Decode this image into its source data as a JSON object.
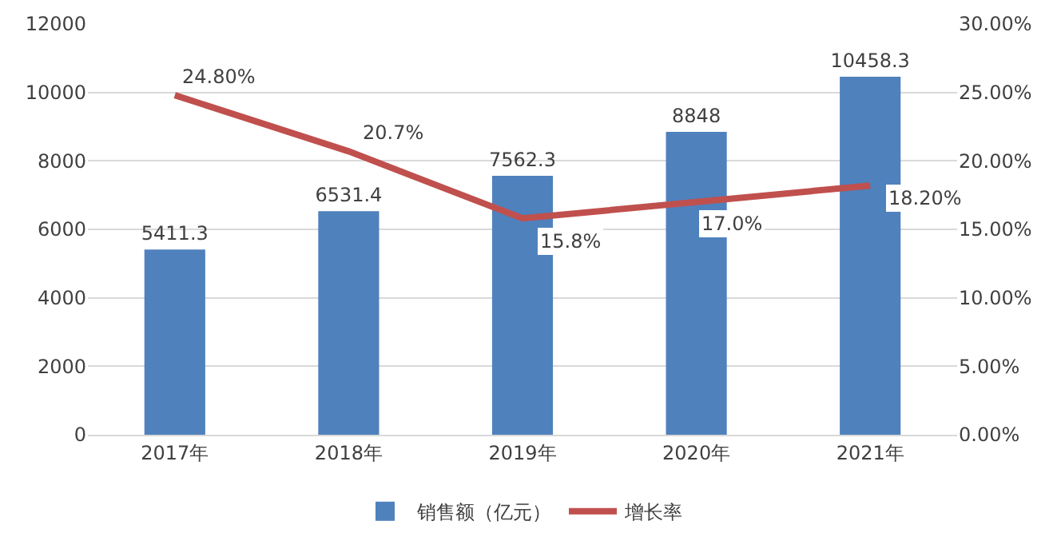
{
  "chart_data": {
    "type": "bar",
    "categories": [
      "2017年",
      "2018年",
      "2019年",
      "2020年",
      "2021年"
    ],
    "series": [
      {
        "name": "销售额（亿元）",
        "color": "#4f81bd",
        "values": [
          5411.3,
          6531.4,
          7562.3,
          8848,
          10458.3
        ],
        "value_labels": [
          "5411.3",
          "6531.4",
          "7562.3",
          "8848",
          "10458.3"
        ]
      },
      {
        "name": "增长率",
        "type": "line",
        "axis": "y2",
        "color": "#c0504d",
        "values": [
          24.8,
          20.7,
          15.8,
          17.0,
          18.2
        ],
        "value_labels": [
          "24.80%",
          "20.7%",
          "15.8%",
          "17.0%",
          "18.20%"
        ]
      }
    ],
    "ylim": [
      0,
      12000
    ],
    "yticks": [
      0,
      2000,
      4000,
      6000,
      8000,
      10000,
      12000
    ],
    "y2lim": [
      0,
      30
    ],
    "y2ticks": [
      {
        "value": 0,
        "label": "0.00%"
      },
      {
        "value": 5,
        "label": "5.00%"
      },
      {
        "value": 10,
        "label": "10.00%"
      },
      {
        "value": 15,
        "label": "15.00%"
      },
      {
        "value": 20,
        "label": "20.00%"
      },
      {
        "value": 25,
        "label": "25.00%"
      },
      {
        "value": 30,
        "label": "30.00%"
      }
    ],
    "grid": "y",
    "legend": "bottom",
    "marker": "none",
    "line_style": "solid"
  }
}
